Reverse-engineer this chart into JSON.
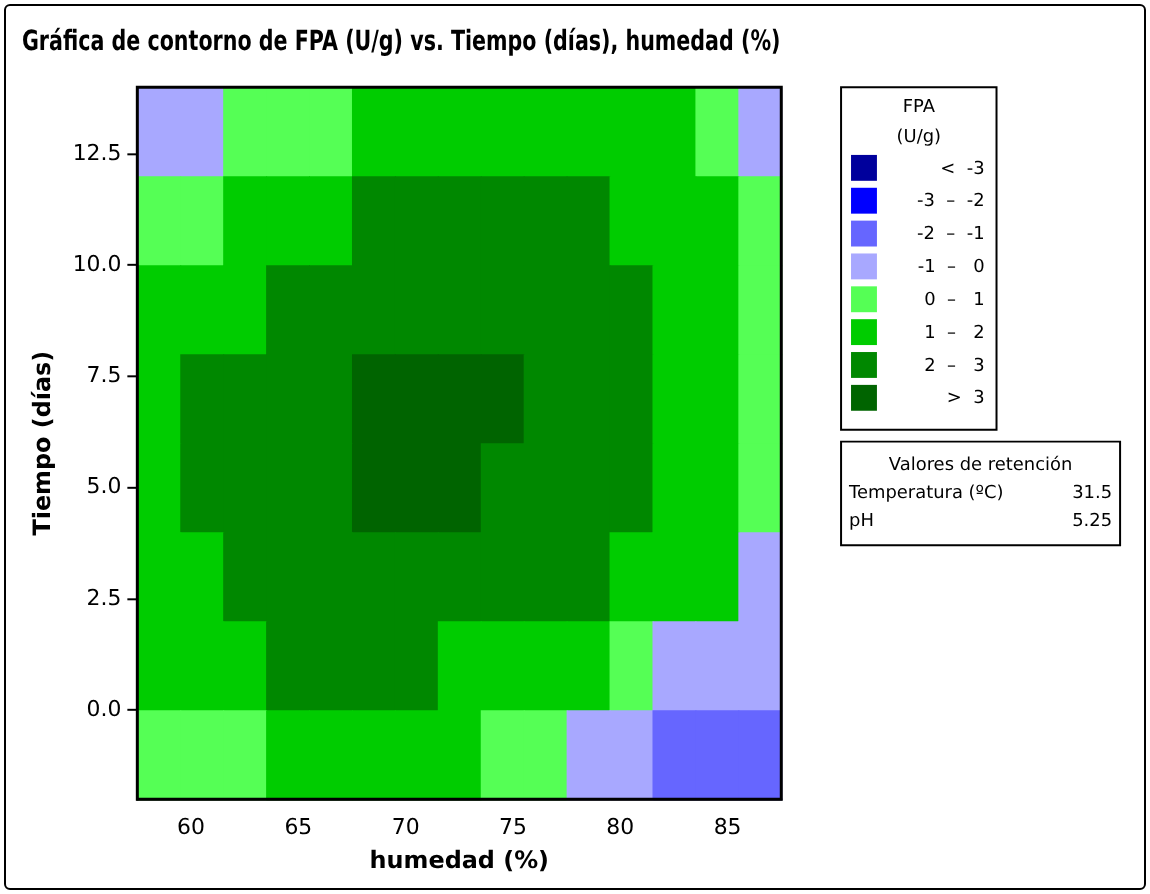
{
  "chart_data": {
    "type": "heatmap",
    "title": "Gráfica de contorno de FPA (U/g) vs. Tiempo (días), humedad (%)",
    "xlabel": "humedad (%)",
    "ylabel": "Tiempo (días)",
    "legend_title": "FPA\n(U/g)",
    "xlim": [
      57.5,
      87.5
    ],
    "xticks": [
      60,
      65,
      70,
      75,
      80,
      85
    ],
    "ylim": [
      -2,
      14
    ],
    "yticks": [
      {
        "value": 0,
        "label": "0.0"
      },
      {
        "value": 2.5,
        "label": "2.5"
      },
      {
        "value": 5,
        "label": "5.0"
      },
      {
        "value": 7.5,
        "label": "7.5"
      },
      {
        "value": 10,
        "label": "10.0"
      },
      {
        "value": 12.5,
        "label": "12.5"
      }
    ],
    "clim": [
      -4,
      4
    ],
    "cticks": [
      {
        "value": -3.5,
        "label": "<  -3"
      },
      {
        "value": -2.5,
        "label": "-3  –  -2"
      },
      {
        "value": -1.5,
        "label": "-2  –  -1"
      },
      {
        "value": -0.5,
        "label": "-1  –   0"
      },
      {
        "value": 0.5,
        "label": "0  –   1"
      },
      {
        "value": 1.5,
        "label": "1  –   2"
      },
      {
        "value": 2.5,
        "label": "2  –   3"
      },
      {
        "value": 3.5,
        "label": ">  3"
      }
    ],
    "colors": [
      "#00009c",
      "#0000ff",
      "#6666ff",
      "#a8a8ff",
      "#55ff55",
      "#00cc00",
      "#008800",
      "#006400"
    ],
    "cells": [
      [
        -0.5,
        -0.5,
        0.5,
        0.5,
        0.5,
        1.5,
        1.5,
        1.5,
        1.5,
        1.5,
        1.5,
        1.5,
        1.5,
        0.5,
        -0.5
      ],
      [
        0.5,
        0.5,
        1.5,
        1.5,
        1.5,
        2.5,
        2.5,
        2.5,
        2.5,
        2.5,
        2.5,
        1.5,
        1.5,
        1.5,
        0.5
      ],
      [
        1.5,
        1.5,
        1.5,
        2.5,
        2.5,
        2.5,
        2.5,
        2.5,
        2.5,
        2.5,
        2.5,
        2.5,
        1.5,
        1.5,
        0.5
      ],
      [
        1.5,
        2.5,
        2.5,
        2.5,
        2.5,
        3.5,
        3.5,
        3.5,
        3.5,
        2.5,
        2.5,
        2.5,
        1.5,
        1.5,
        0.5
      ],
      [
        1.5,
        2.5,
        2.5,
        2.5,
        2.5,
        3.5,
        3.5,
        3.5,
        2.5,
        2.5,
        2.5,
        2.5,
        1.5,
        1.5,
        0.5
      ],
      [
        1.5,
        1.5,
        2.5,
        2.5,
        2.5,
        2.5,
        2.5,
        2.5,
        2.5,
        2.5,
        2.5,
        1.5,
        1.5,
        1.5,
        -0.5
      ],
      [
        1.5,
        1.5,
        1.5,
        2.5,
        2.5,
        2.5,
        2.5,
        1.5,
        1.5,
        1.5,
        1.5,
        0.5,
        -0.5,
        -0.5,
        -0.5
      ],
      [
        0.5,
        0.5,
        0.5,
        1.5,
        1.5,
        1.5,
        1.5,
        1.5,
        0.5,
        0.5,
        -0.5,
        -0.5,
        -1.5,
        -1.5,
        -1.5
      ]
    ],
    "annotations": [
      "Valores de retención",
      "Temperatura (ºC)",
      "31.5",
      "pH",
      "5.25"
    ]
  }
}
